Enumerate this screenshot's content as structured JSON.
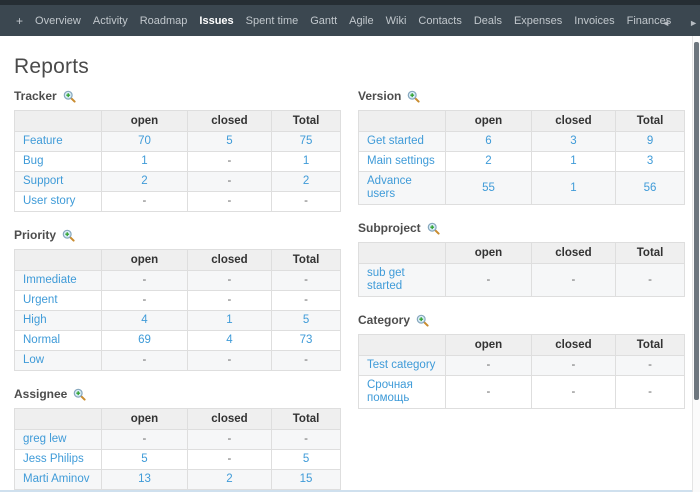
{
  "colors": {
    "nav_background": "#3b4750",
    "nav_top_strip": "#262e34",
    "nav_text": "#c1c7cc",
    "active_tab_text": "#ffffff",
    "link": "#3f9bd8",
    "table_header_bg": "#efefef",
    "zebra_row_bg": "#f6f7f8",
    "zoom_icon_plus": "#35a435"
  },
  "nav": {
    "plus": "+",
    "items": [
      {
        "label": "Overview",
        "active": false
      },
      {
        "label": "Activity",
        "active": false
      },
      {
        "label": "Roadmap",
        "active": false
      },
      {
        "label": "Issues",
        "active": true
      },
      {
        "label": "Spent time",
        "active": false
      },
      {
        "label": "Gantt",
        "active": false
      },
      {
        "label": "Agile",
        "active": false
      },
      {
        "label": "Wiki",
        "active": false
      },
      {
        "label": "Contacts",
        "active": false
      },
      {
        "label": "Deals",
        "active": false
      },
      {
        "label": "Expenses",
        "active": false
      },
      {
        "label": "Invoices",
        "active": false
      },
      {
        "label": "Finances",
        "active": false
      }
    ],
    "scroll_left_icon": "◄",
    "scroll_right_icon": "►"
  },
  "page": {
    "title": "Reports"
  },
  "report": {
    "columns": [
      "",
      "open",
      "closed",
      "Total"
    ],
    "left_tables": [
      {
        "id": "tracker",
        "title": "Tracker",
        "rows": [
          [
            "Feature",
            "70",
            "5",
            "75"
          ],
          [
            "Bug",
            "1",
            "-",
            "1"
          ],
          [
            "Support",
            "2",
            "-",
            "2"
          ],
          [
            "User story",
            "-",
            "-",
            "-"
          ]
        ]
      },
      {
        "id": "priority",
        "title": "Priority",
        "rows": [
          [
            "Immediate",
            "-",
            "-",
            "-"
          ],
          [
            "Urgent",
            "-",
            "-",
            "-"
          ],
          [
            "High",
            "4",
            "1",
            "5"
          ],
          [
            "Normal",
            "69",
            "4",
            "73"
          ],
          [
            "Low",
            "-",
            "-",
            "-"
          ]
        ]
      },
      {
        "id": "assignee",
        "title": "Assignee",
        "rows": [
          [
            "greg lew",
            "-",
            "-",
            "-"
          ],
          [
            "Jess Philips",
            "5",
            "-",
            "5"
          ],
          [
            "Marti Aminov",
            "13",
            "2",
            "15"
          ]
        ]
      }
    ],
    "right_tables": [
      {
        "id": "version",
        "title": "Version",
        "rows": [
          [
            "Get started",
            "6",
            "3",
            "9"
          ],
          [
            "Main settings",
            "2",
            "1",
            "3"
          ],
          [
            "Advance users",
            "55",
            "1",
            "56"
          ]
        ]
      },
      {
        "id": "subproject",
        "title": "Subproject",
        "rows": [
          [
            "sub get started",
            "-",
            "-",
            "-"
          ]
        ]
      },
      {
        "id": "category",
        "title": "Category",
        "rows": [
          [
            "Test category",
            "-",
            "-",
            "-"
          ],
          [
            "Срочная помощь",
            "-",
            "-",
            "-"
          ]
        ]
      }
    ]
  }
}
